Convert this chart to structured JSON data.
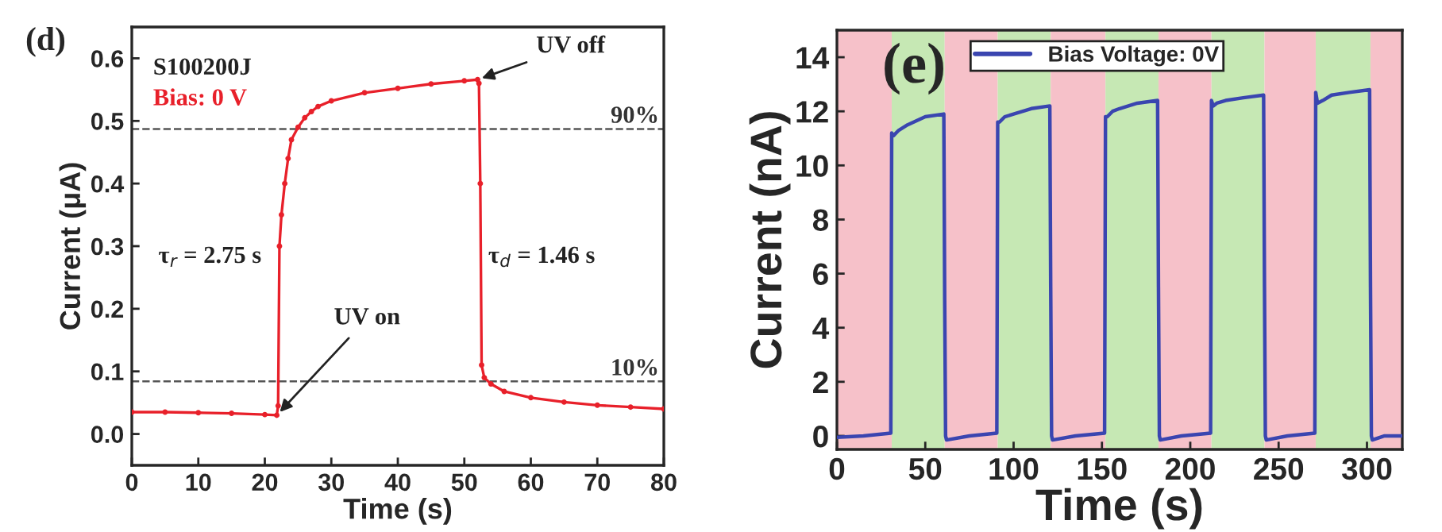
{
  "chart_data": [
    {
      "type": "line",
      "title": "(d)",
      "xlabel": "Time (s)",
      "ylabel": "Current (μA)",
      "marker": "circle",
      "line_style": "solid",
      "series": [
        {
          "color": "#e8202a",
          "x": [
            0,
            5,
            10,
            15,
            20,
            21.8,
            22,
            22.2,
            22.5,
            23,
            23.5,
            24,
            25,
            26,
            27,
            28,
            30,
            35,
            40,
            45,
            50,
            52,
            52.2,
            52.4,
            52.6,
            53,
            54,
            56,
            60,
            65,
            70,
            75,
            80
          ],
          "values": [
            0.035,
            0.035,
            0.034,
            0.033,
            0.031,
            0.03,
            0.045,
            0.3,
            0.35,
            0.4,
            0.44,
            0.47,
            0.49,
            0.505,
            0.515,
            0.523,
            0.532,
            0.545,
            0.552,
            0.559,
            0.564,
            0.566,
            0.56,
            0.4,
            0.11,
            0.09,
            0.08,
            0.068,
            0.058,
            0.051,
            0.046,
            0.043,
            0.04
          ]
        }
      ],
      "xlim": [
        0,
        80
      ],
      "ylim": [
        -0.05,
        0.65
      ],
      "xticks": [
        0,
        10,
        20,
        30,
        40,
        50,
        60,
        70,
        80
      ],
      "yticks": [
        {
          "value": 0,
          "label": "0.0"
        },
        0.1,
        0.2,
        0.3,
        0.4,
        0.5,
        0.6
      ],
      "ref_lines": [
        {
          "axis": "y",
          "value": 0.487,
          "color": "#555555",
          "line_style": "dashed"
        },
        {
          "axis": "y",
          "value": 0.084,
          "color": "#555555",
          "line_style": "dashed"
        }
      ],
      "annotations": [
        "S100200J",
        "Bias: 0 V",
        {
          "text": "UV on",
          "x": 21.8,
          "y": 0.03
        },
        {
          "text": "UV off",
          "x": 52,
          "y": 0.566
        },
        "τ$_{r}$ = 2.75 s",
        "τ$_{d}$ = 1.46 s",
        "90%",
        "10%"
      ],
      "grid": false,
      "legend": false
    },
    {
      "type": "line",
      "title": "(e)",
      "xlabel": "Time (s)",
      "ylabel": "Current (nA)",
      "legend": "top",
      "grid": false,
      "series": [
        {
          "name": "Bias Voltage: 0V",
          "color": "#3a45b0",
          "x": [
            0,
            15,
            30.5,
            31,
            32,
            35,
            40,
            50,
            60.5,
            61,
            61.5,
            62,
            75,
            90.5,
            91,
            92,
            95,
            100,
            110,
            120.5,
            121,
            121.5,
            122,
            135,
            151.5,
            152,
            153,
            156,
            160,
            170,
            181.5,
            182,
            182.5,
            183,
            195,
            211.5,
            212,
            213,
            215,
            220,
            230,
            241.5,
            242,
            242.5,
            243,
            255,
            270.5,
            271,
            272,
            275,
            280,
            290,
            301.5,
            302,
            302.5,
            303,
            310,
            320
          ],
          "values": [
            -0.05,
            0.0,
            0.1,
            11.2,
            11.1,
            11.3,
            11.5,
            11.8,
            11.9,
            5.0,
            0.0,
            -0.15,
            0.0,
            0.1,
            11.6,
            11.6,
            11.8,
            11.9,
            12.1,
            12.2,
            5.5,
            0.0,
            -0.15,
            0.0,
            0.1,
            11.8,
            11.8,
            12.0,
            12.1,
            12.3,
            12.4,
            5.5,
            0.0,
            -0.15,
            0.0,
            0.1,
            12.4,
            12.2,
            12.3,
            12.4,
            12.5,
            12.6,
            5.5,
            0.0,
            -0.15,
            0.0,
            0.1,
            12.7,
            12.3,
            12.4,
            12.6,
            12.7,
            12.8,
            5.5,
            0.0,
            -0.15,
            0.0,
            0.0
          ]
        }
      ],
      "xlim": [
        0,
        320
      ],
      "ylim": [
        -0.5,
        15
      ],
      "xticks": [
        0,
        50,
        100,
        150,
        200,
        250,
        300
      ],
      "yticks": [
        0,
        2,
        4,
        6,
        8,
        10,
        12,
        14
      ],
      "bands": [
        {
          "axis": "x",
          "from": 0,
          "to": 31,
          "color": "#f6c1c9"
        },
        {
          "axis": "x",
          "from": 31,
          "to": 61,
          "color": "#c6e8b4"
        },
        {
          "axis": "x",
          "from": 61,
          "to": 91,
          "color": "#f6c1c9"
        },
        {
          "axis": "x",
          "from": 91,
          "to": 121,
          "color": "#c6e8b4"
        },
        {
          "axis": "x",
          "from": 121,
          "to": 152,
          "color": "#f6c1c9"
        },
        {
          "axis": "x",
          "from": 152,
          "to": 182,
          "color": "#c6e8b4"
        },
        {
          "axis": "x",
          "from": 182,
          "to": 212,
          "color": "#f6c1c9"
        },
        {
          "axis": "x",
          "from": 212,
          "to": 242,
          "color": "#c6e8b4"
        },
        {
          "axis": "x",
          "from": 242,
          "to": 271,
          "color": "#f6c1c9"
        },
        {
          "axis": "x",
          "from": 271,
          "to": 302,
          "color": "#c6e8b4"
        },
        {
          "axis": "x",
          "from": 302,
          "to": 320,
          "color": "#f6c1c9"
        }
      ]
    }
  ]
}
